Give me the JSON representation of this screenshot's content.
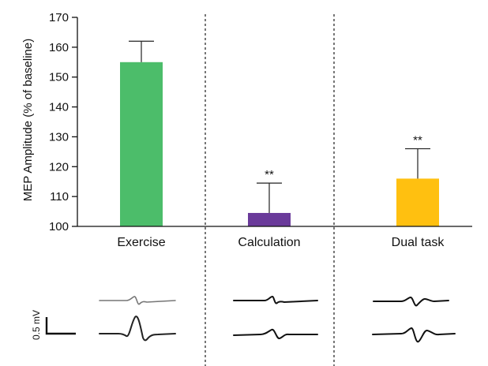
{
  "chart_data": {
    "type": "bar",
    "title": "",
    "ylabel": "MEP Amplitude (% of baseline)",
    "xlabel": "",
    "ylim": [
      100,
      170
    ],
    "yticks": [
      100,
      110,
      120,
      130,
      140,
      150,
      160,
      170
    ],
    "categories": [
      "Exercise",
      "Calculation",
      "Dual task"
    ],
    "values": [
      155,
      104.5,
      116
    ],
    "errors": [
      7,
      10,
      10
    ],
    "colors": [
      "#4cbd6a",
      "#6a3a9a",
      "#ffc010"
    ],
    "significance": [
      "",
      "**",
      "**"
    ],
    "grid": false,
    "dividers": "dashed vertical lines between categories"
  },
  "traces": {
    "scale_label": "0.5 mV",
    "description_icons": [
      "mep-trace-icon",
      "scale-bar-icon"
    ]
  }
}
